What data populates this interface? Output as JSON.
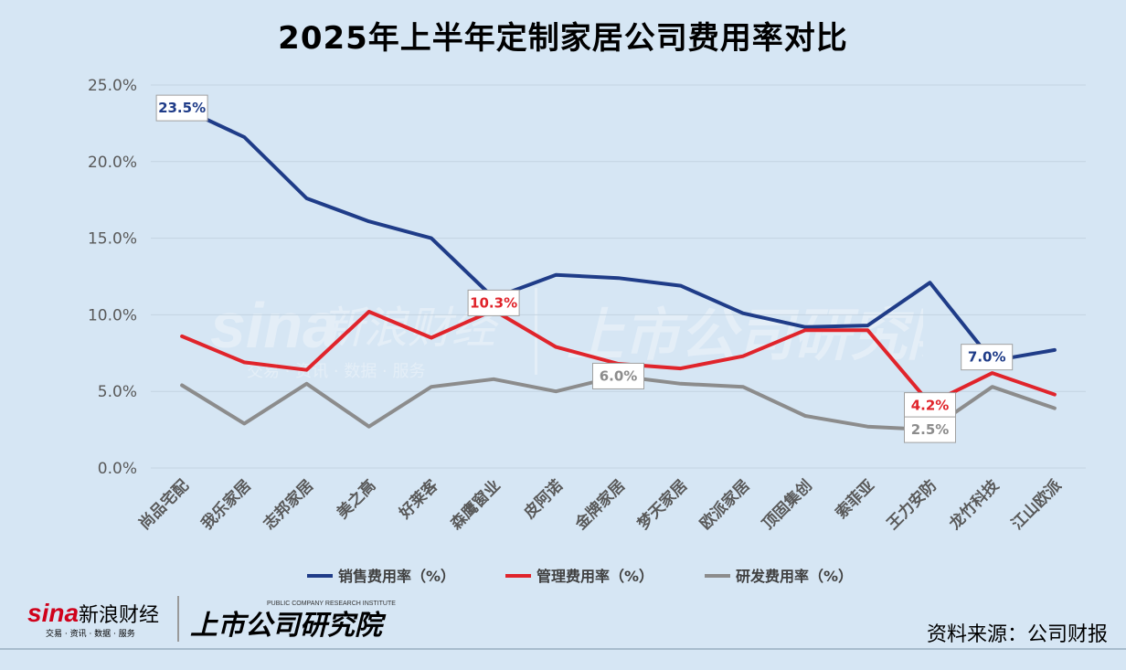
{
  "title": "2025年上半年定制家居公司费用率对比",
  "source": "资料来源：公司财报",
  "footer": {
    "brand_sina": "sina",
    "brand_name": "新浪财经",
    "brand_tagline": "交易 · 资讯 · 数据 · 服务",
    "institute_name": "上市公司研究院",
    "institute_en": "PUBLIC COMPANY RESEARCH INSTITUTE"
  },
  "colors": {
    "background": "#d6e6f4",
    "sales": "#1f3c88",
    "admin": "#e0242b",
    "rd": "#8c8c8c"
  },
  "chart_data": {
    "type": "line",
    "title": "2025年上半年定制家居公司费用率对比",
    "categories": [
      "尚品宅配",
      "我乐家居",
      "志邦家居",
      "美之高",
      "好莱客",
      "森鹰窗业",
      "皮阿诺",
      "金牌家居",
      "梦天家居",
      "欧派家居",
      "顶固集创",
      "索菲亚",
      "王力安防",
      "龙竹科技",
      "江山欧派"
    ],
    "ylim": [
      0,
      25
    ],
    "yticks": [
      "0.0%",
      "5.0%",
      "10.0%",
      "15.0%",
      "20.0%",
      "25.0%"
    ],
    "grid": true,
    "legend_position": "bottom",
    "series": [
      {
        "name": "销售费用率（%）",
        "color": "#1f3c88",
        "values": [
          23.5,
          21.6,
          17.6,
          16.1,
          15.0,
          11.1,
          12.6,
          12.4,
          11.9,
          10.1,
          9.2,
          9.3,
          12.1,
          7.0,
          7.7
        ]
      },
      {
        "name": "管理费用率（%）",
        "color": "#e0242b",
        "values": [
          8.6,
          6.9,
          6.4,
          10.2,
          8.5,
          10.3,
          7.9,
          6.8,
          6.5,
          7.3,
          9.0,
          9.0,
          4.2,
          6.2,
          4.8
        ]
      },
      {
        "name": "研发费用率（%）",
        "color": "#8c8c8c",
        "values": [
          5.4,
          2.9,
          5.5,
          2.7,
          5.3,
          5.8,
          5.0,
          6.0,
          5.5,
          5.3,
          3.4,
          2.7,
          2.5,
          5.3,
          3.9
        ]
      }
    ],
    "annotations": [
      {
        "series": 0,
        "index": 0,
        "text": "23.5%"
      },
      {
        "series": 1,
        "index": 5,
        "text": "10.3%"
      },
      {
        "series": 2,
        "index": 7,
        "text": "6.0%"
      },
      {
        "series": 1,
        "index": 12,
        "text": "4.2%"
      },
      {
        "series": 2,
        "index": 12,
        "text": "2.5%"
      },
      {
        "series": 0,
        "index": 13,
        "text": "7.0%"
      }
    ]
  }
}
